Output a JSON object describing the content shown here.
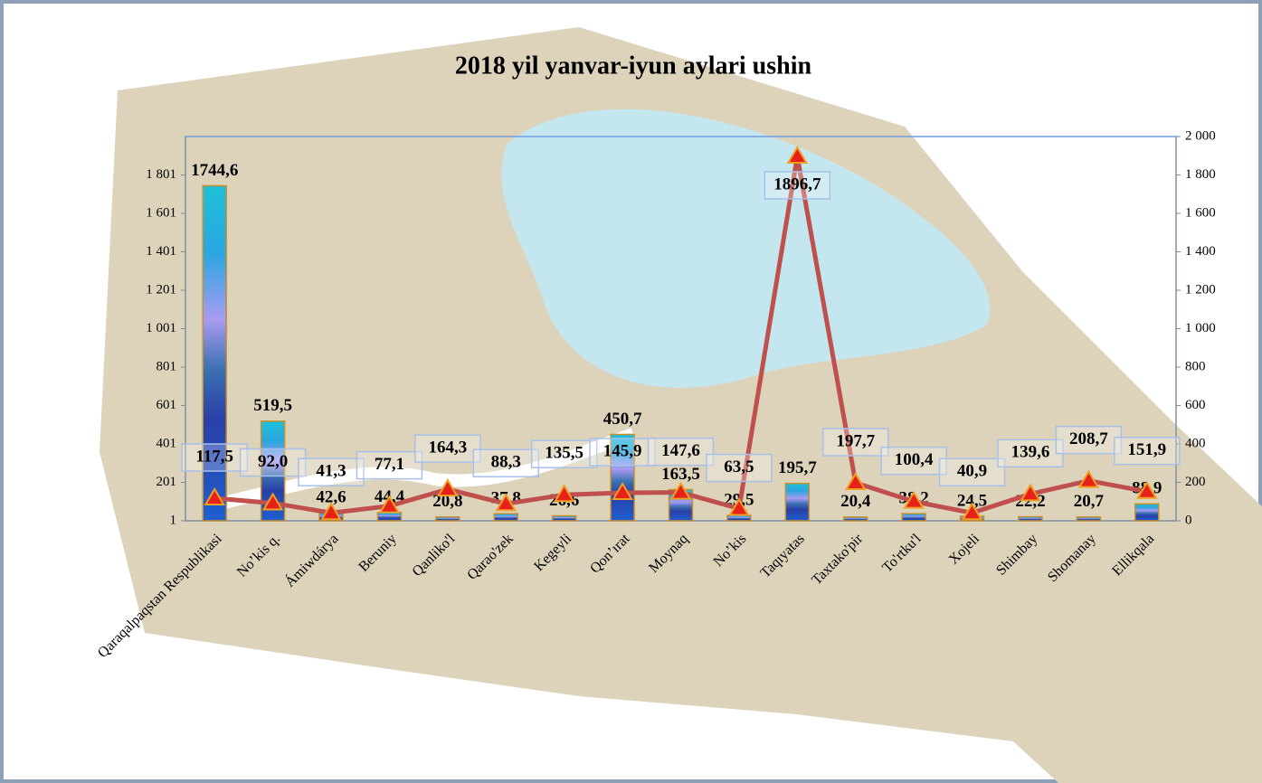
{
  "chart_data": {
    "type": "bar",
    "title": "2018 yil yanvar-iyun aylari ushin",
    "categories": [
      "Qaraqalpaqstan Respublikasi",
      "No’kis q.",
      "Ámiwdárya",
      "Beruniy",
      "Qanliko'l",
      "Qarao'zek",
      "Kegeyli",
      "Qon’ırat",
      "Moynaq",
      "No’kis",
      "Taqıyatas",
      "Taxtako'pir",
      "To'rtku'l",
      "Xojeli",
      "Shimbay",
      "Shomanay",
      "Ellikqala"
    ],
    "series": [
      {
        "type": "bar",
        "color": "#2a8fd6",
        "values": [
          1744.6,
          519.5,
          42.6,
          44.4,
          20.8,
          37.8,
          26.6,
          450.7,
          163.5,
          29.5,
          195.7,
          20.4,
          38.2,
          24.5,
          22.2,
          20.7,
          88.9
        ],
        "value_labels": [
          "1744,6",
          "519,5",
          "42,6",
          "44,4",
          "20,8",
          "37,8",
          "26,6",
          "450,7",
          "163,5",
          "29,5",
          "195,7",
          "20,4",
          "38,2",
          "24,5",
          "22,2",
          "20,7",
          "88,9"
        ]
      },
      {
        "type": "line",
        "axis": "y2",
        "color": "#c0504d",
        "values": [
          117.5,
          92.0,
          41.3,
          77.1,
          164.3,
          88.3,
          135.5,
          145.9,
          147.6,
          63.5,
          1896.7,
          197.7,
          100.4,
          40.9,
          139.6,
          208.7,
          151.9
        ],
        "value_labels": [
          "117,5",
          "92,0",
          "41,3",
          "77,1",
          "164,3",
          "88,3",
          "135,5",
          "145,9",
          "147,6",
          "63,5",
          "1896,7",
          "197,7",
          "100,4",
          "40,9",
          "139,6",
          "208,7",
          "151,9"
        ]
      }
    ],
    "ylim": [
      1,
      2001
    ],
    "yticks": [
      1,
      201,
      401,
      601,
      801,
      {
        "value": 1001,
        "label": "1 001"
      },
      {
        "value": 1201,
        "label": "1 201"
      },
      {
        "value": 1401,
        "label": "1 401"
      },
      {
        "value": 1601,
        "label": "1 601"
      },
      {
        "value": 1801,
        "label": "1 801"
      }
    ],
    "y2lim": [
      0,
      2000
    ],
    "y2ticks": [
      0,
      200,
      400,
      600,
      800,
      {
        "value": 1000,
        "label": "1 000"
      },
      {
        "value": 1200,
        "label": "1 200"
      },
      {
        "value": 1400,
        "label": "1 400"
      },
      {
        "value": 1600,
        "label": "1 600"
      },
      {
        "value": 1800,
        "label": "1 800"
      },
      {
        "value": 2000,
        "label": "2 000"
      }
    ]
  }
}
